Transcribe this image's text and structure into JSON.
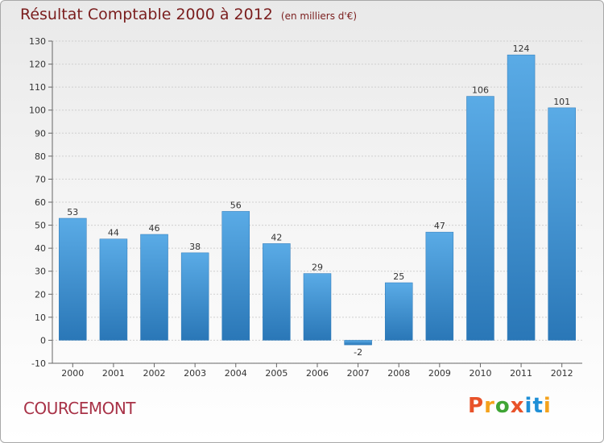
{
  "header": {
    "title": "Résultat Comptable 2000 à 2012",
    "subtitle": "(en milliers d'€)"
  },
  "footer": {
    "town": "COURCEMONT",
    "brand": {
      "letters": [
        "P",
        "r",
        "o",
        "x",
        "i",
        "t",
        "i"
      ],
      "colors": [
        "#e8532a",
        "#f4a21c",
        "#3fa535",
        "#e8532a",
        "#1f8fd6",
        "#1f8fd6",
        "#f4a21c"
      ]
    }
  },
  "chart_data": {
    "type": "bar",
    "categories": [
      "2000",
      "2001",
      "2002",
      "2003",
      "2004",
      "2005",
      "2006",
      "2007",
      "2008",
      "2009",
      "2010",
      "2011",
      "2012"
    ],
    "values": [
      53,
      44,
      46,
      38,
      56,
      42,
      29,
      -2,
      25,
      47,
      106,
      124,
      101
    ],
    "data_labels": [
      "53",
      "44",
      "46",
      "38",
      "56",
      "42",
      "29",
      "-2",
      "25",
      "47",
      "106",
      "124",
      "101"
    ],
    "yticks": [
      -10,
      0,
      10,
      20,
      30,
      40,
      50,
      60,
      70,
      80,
      90,
      100,
      110,
      120,
      130
    ],
    "ylim": [
      -10,
      130
    ],
    "grid": "horizontal dashed",
    "bar_color": "#3b8fd0",
    "bar_color_light": "#5aabe6",
    "bar_color_dark": "#2a77b7"
  }
}
